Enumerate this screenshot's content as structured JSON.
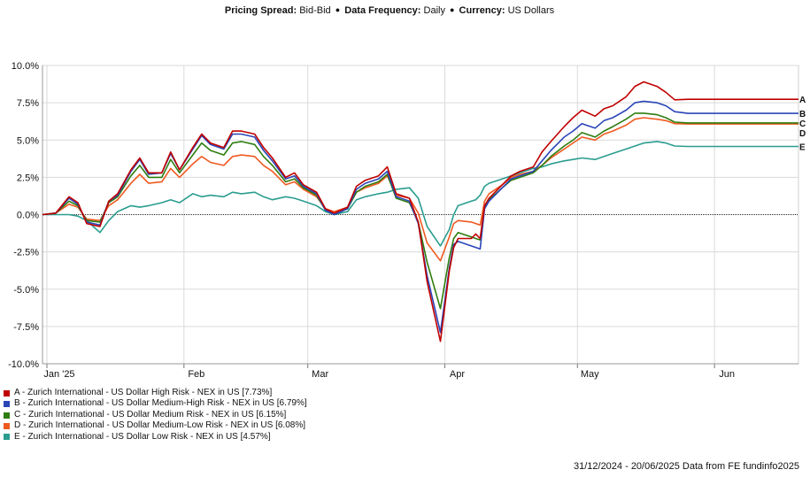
{
  "header": {
    "spread_label": "Pricing Spread:",
    "spread_value": "Bid-Bid",
    "frequency_label": "Data Frequency:",
    "frequency_value": "Daily",
    "currency_label": "Currency:",
    "currency_value": "US Dollars",
    "separator": "●"
  },
  "footer": {
    "text": "31/12/2024 - 20/06/2025 Data from FE fundinfo2025"
  },
  "chart_data": {
    "type": "line",
    "title": "",
    "xlabel": "",
    "ylabel": "",
    "ylim": [
      -10,
      10
    ],
    "yticks": [
      10,
      7.5,
      5,
      2.5,
      0,
      -2.5,
      -5,
      -7.5,
      -10
    ],
    "ytick_labels": [
      "10.0%",
      "7.5%",
      "5.0%",
      "2.5%",
      "0.0%",
      "-2.5%",
      "-5.0%",
      "-7.5%",
      "-10.0%"
    ],
    "xlim": [
      "2024-12-31",
      "2025-06-20"
    ],
    "xticks": [
      {
        "date": "2025-01-01",
        "label": "Jan '25"
      },
      {
        "date": "2025-02-01",
        "label": "Feb"
      },
      {
        "date": "2025-03-01",
        "label": "Mar"
      },
      {
        "date": "2025-04-01",
        "label": "Apr"
      },
      {
        "date": "2025-05-01",
        "label": "May"
      },
      {
        "date": "2025-06-01",
        "label": "Jun"
      }
    ],
    "grid": true,
    "zero_line": true,
    "legend_position": "bottom-left",
    "x": [
      "2024-12-31",
      "2025-01-03",
      "2025-01-06",
      "2025-01-08",
      "2025-01-10",
      "2025-01-13",
      "2025-01-15",
      "2025-01-17",
      "2025-01-20",
      "2025-01-22",
      "2025-01-24",
      "2025-01-27",
      "2025-01-29",
      "2025-01-31",
      "2025-02-03",
      "2025-02-05",
      "2025-02-07",
      "2025-02-10",
      "2025-02-12",
      "2025-02-14",
      "2025-02-17",
      "2025-02-19",
      "2025-02-21",
      "2025-02-24",
      "2025-02-26",
      "2025-02-28",
      "2025-03-03",
      "2025-03-05",
      "2025-03-07",
      "2025-03-10",
      "2025-03-12",
      "2025-03-14",
      "2025-03-17",
      "2025-03-19",
      "2025-03-21",
      "2025-03-24",
      "2025-03-26",
      "2025-03-28",
      "2025-03-31",
      "2025-04-02",
      "2025-04-03",
      "2025-04-04",
      "2025-04-07",
      "2025-04-08",
      "2025-04-09",
      "2025-04-10",
      "2025-04-11",
      "2025-04-14",
      "2025-04-16",
      "2025-04-18",
      "2025-04-21",
      "2025-04-23",
      "2025-04-25",
      "2025-04-28",
      "2025-04-30",
      "2025-05-02",
      "2025-05-05",
      "2025-05-07",
      "2025-05-09",
      "2025-05-12",
      "2025-05-14",
      "2025-05-16",
      "2025-05-19",
      "2025-05-21",
      "2025-05-23",
      "2025-05-26",
      "2025-05-28",
      "2025-05-30",
      "2025-06-02",
      "2025-06-04",
      "2025-06-06",
      "2025-06-09",
      "2025-06-11",
      "2025-06-13",
      "2025-06-16",
      "2025-06-18",
      "2025-06-20"
    ],
    "series": [
      {
        "name": "A - Zurich International - US Dollar High Risk - NEX in US [7.73%]",
        "label": "A",
        "color": "#c00000",
        "values": [
          0,
          0.1,
          1.2,
          0.8,
          -0.6,
          -0.8,
          0.9,
          1.4,
          3.0,
          3.8,
          2.8,
          2.8,
          4.2,
          3.0,
          4.5,
          5.4,
          4.8,
          4.5,
          5.6,
          5.6,
          5.4,
          4.5,
          3.8,
          2.5,
          2.8,
          2.0,
          1.5,
          0.4,
          0.1,
          0.5,
          1.9,
          2.3,
          2.6,
          3.2,
          1.4,
          1.1,
          -0.5,
          -4.5,
          -8.5,
          -3.8,
          -2.2,
          -1.6,
          -1.6,
          -1.3,
          -1.6,
          0.6,
          1.1,
          2.0,
          2.6,
          2.9,
          3.2,
          4.2,
          4.9,
          5.9,
          6.5,
          7.0,
          6.6,
          7.1,
          7.3,
          7.9,
          8.6,
          8.9,
          8.6,
          8.2,
          7.7,
          7.73,
          7.73,
          7.73,
          7.73,
          7.73,
          7.73,
          7.73,
          7.73,
          7.73,
          7.73,
          7.73,
          7.73
        ]
      },
      {
        "name": "B - Zurich International - US Dollar Medium-High Risk - NEX in US [6.79%]",
        "label": "B",
        "color": "#2a45b8",
        "values": [
          0,
          0.1,
          1.1,
          0.7,
          -0.5,
          -0.7,
          0.9,
          1.3,
          2.9,
          3.7,
          2.7,
          2.8,
          4.1,
          3.0,
          4.4,
          5.3,
          4.7,
          4.4,
          5.4,
          5.4,
          5.2,
          4.3,
          3.6,
          2.4,
          2.6,
          1.9,
          1.4,
          0.3,
          0.0,
          0.4,
          1.7,
          2.1,
          2.4,
          2.9,
          1.2,
          0.9,
          -0.6,
          -4.1,
          -7.9,
          -3.6,
          -2.0,
          -1.8,
          -2.1,
          -2.2,
          -2.3,
          0.4,
          0.9,
          1.8,
          2.4,
          2.6,
          2.9,
          3.6,
          4.3,
          5.2,
          5.6,
          6.1,
          5.8,
          6.3,
          6.5,
          7.0,
          7.5,
          7.6,
          7.5,
          7.3,
          6.9,
          6.79,
          6.79,
          6.79,
          6.79,
          6.79,
          6.79,
          6.79,
          6.79,
          6.79,
          6.79,
          6.79,
          6.79
        ]
      },
      {
        "name": "C - Zurich International - US Dollar Medium Risk - NEX in US [6.15%]",
        "label": "C",
        "color": "#2e7d0f",
        "values": [
          0,
          0.1,
          0.9,
          0.6,
          -0.4,
          -0.5,
          0.8,
          1.2,
          2.6,
          3.3,
          2.5,
          2.5,
          3.7,
          2.8,
          4.0,
          4.8,
          4.3,
          4.0,
          4.8,
          4.9,
          4.7,
          3.9,
          3.3,
          2.2,
          2.4,
          1.8,
          1.3,
          0.3,
          0.0,
          0.4,
          1.5,
          1.9,
          2.2,
          2.7,
          1.1,
          0.8,
          -0.5,
          -3.2,
          -6.3,
          -2.9,
          -1.6,
          -1.2,
          -1.5,
          -1.6,
          -1.7,
          0.5,
          1.0,
          1.8,
          2.3,
          2.5,
          2.8,
          3.3,
          3.9,
          4.6,
          5.0,
          5.5,
          5.2,
          5.6,
          5.9,
          6.4,
          6.8,
          6.8,
          6.7,
          6.5,
          6.2,
          6.15,
          6.15,
          6.15,
          6.15,
          6.15,
          6.15,
          6.15,
          6.15,
          6.15,
          6.15,
          6.15,
          6.15
        ]
      },
      {
        "name": "D - Zurich International - US Dollar Medium-Low Risk - NEX in US [6.08%]",
        "label": "D",
        "color": "#ef5a20",
        "values": [
          0,
          0.1,
          0.7,
          0.5,
          -0.3,
          -0.4,
          0.6,
          1.0,
          2.1,
          2.7,
          2.1,
          2.2,
          3.1,
          2.5,
          3.4,
          3.9,
          3.5,
          3.3,
          3.9,
          4.0,
          3.9,
          3.3,
          2.9,
          2.0,
          2.2,
          1.7,
          1.2,
          0.4,
          0.2,
          0.5,
          1.5,
          1.8,
          2.1,
          2.6,
          1.3,
          1.1,
          0.1,
          -1.9,
          -3.1,
          -1.5,
          -0.6,
          -0.4,
          -0.5,
          -0.6,
          -0.7,
          0.9,
          1.4,
          2.0,
          2.5,
          2.7,
          2.9,
          3.3,
          3.8,
          4.4,
          4.8,
          5.2,
          5.0,
          5.4,
          5.6,
          6.0,
          6.4,
          6.5,
          6.4,
          6.3,
          6.1,
          6.08,
          6.08,
          6.08,
          6.08,
          6.08,
          6.08,
          6.08,
          6.08,
          6.08,
          6.08,
          6.08,
          6.08
        ]
      },
      {
        "name": "E - Zurich International - US Dollar Low Risk - NEX in US [4.57%]",
        "label": "E",
        "color": "#2a9d8f",
        "values": [
          0,
          0.0,
          0.0,
          -0.1,
          -0.4,
          -1.2,
          -0.4,
          0.2,
          0.6,
          0.5,
          0.6,
          0.8,
          1.0,
          0.8,
          1.4,
          1.2,
          1.3,
          1.2,
          1.5,
          1.4,
          1.5,
          1.2,
          1.0,
          1.2,
          1.1,
          0.9,
          0.6,
          0.2,
          0.0,
          0.2,
          1.0,
          1.2,
          1.4,
          1.5,
          1.7,
          1.8,
          1.1,
          -0.8,
          -2.1,
          -1.0,
          0.0,
          0.6,
          0.9,
          1.0,
          1.3,
          1.9,
          2.1,
          2.4,
          2.6,
          2.8,
          3.1,
          3.2,
          3.4,
          3.6,
          3.7,
          3.8,
          3.7,
          3.9,
          4.1,
          4.4,
          4.6,
          4.8,
          4.9,
          4.8,
          4.6,
          4.57,
          4.57,
          4.57,
          4.57,
          4.57,
          4.57,
          4.57,
          4.57,
          4.57,
          4.57,
          4.57,
          4.57
        ]
      }
    ]
  }
}
